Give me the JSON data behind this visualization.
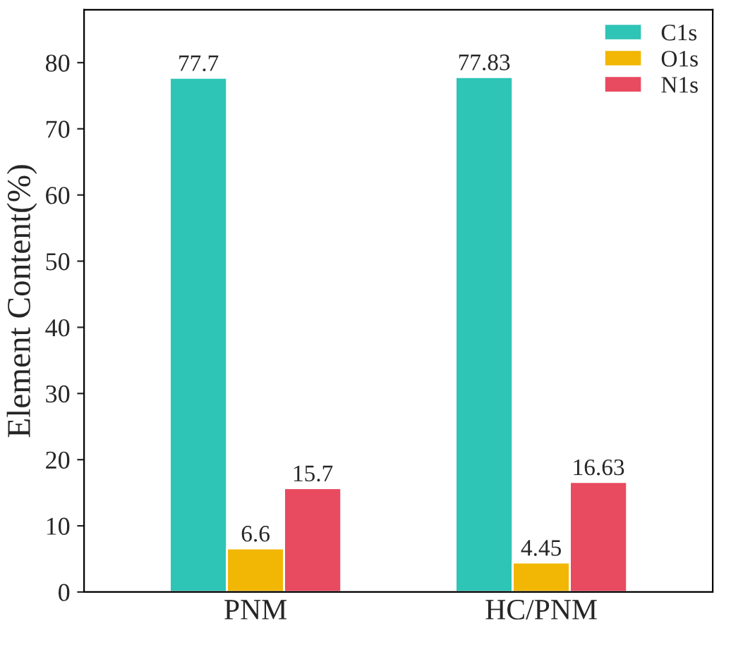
{
  "chart_data": {
    "type": "bar",
    "ylabel": "Element Content(%)",
    "categories": [
      "PNM",
      "HC/PNM"
    ],
    "series": [
      {
        "name": "C1s",
        "color": "#2ec4b6",
        "values": [
          77.7,
          77.83
        ]
      },
      {
        "name": "O1s",
        "color": "#f2b705",
        "values": [
          6.6,
          4.45
        ]
      },
      {
        "name": "N1s",
        "color": "#e84a5f",
        "values": [
          15.7,
          16.63
        ]
      }
    ],
    "ylim": [
      0,
      88
    ],
    "yticks": [
      0,
      10,
      20,
      30,
      40,
      50,
      60,
      70,
      80
    ],
    "data_labels": true,
    "legend": "top right",
    "grid": false
  }
}
